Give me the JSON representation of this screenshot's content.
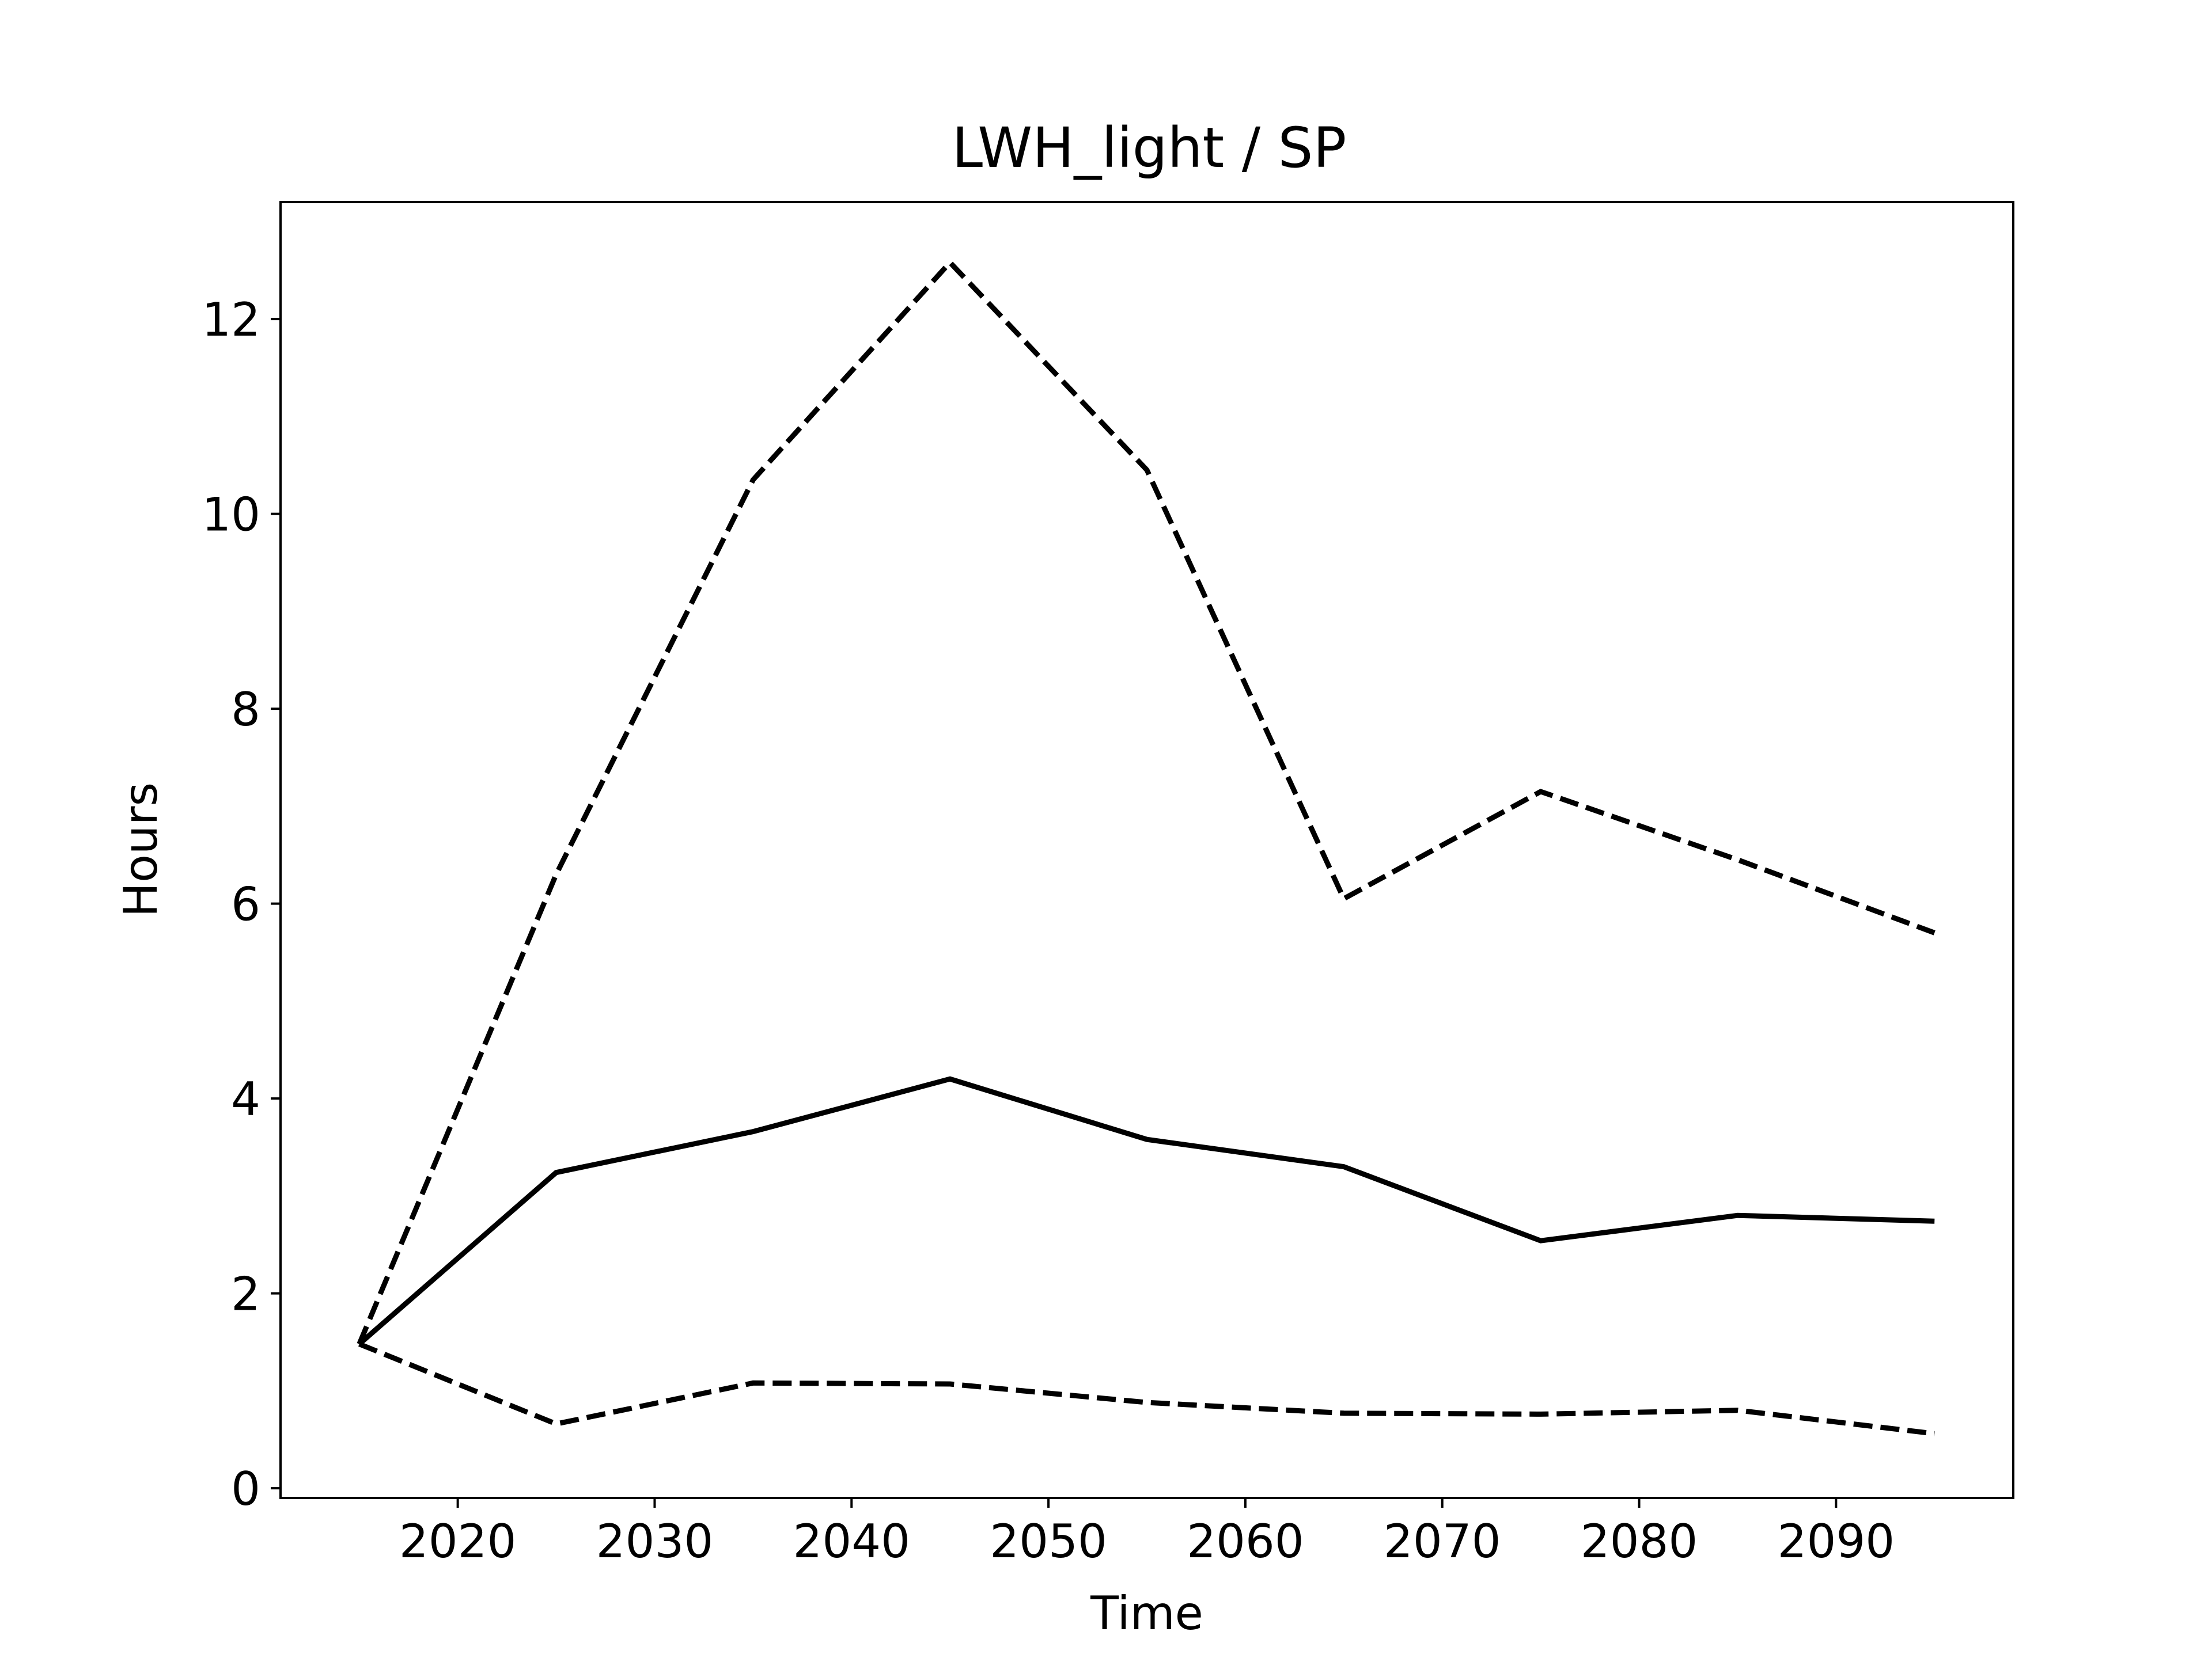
{
  "chart_data": {
    "type": "line",
    "title": "LWH_light / SP",
    "xlabel": "Time",
    "ylabel": "Hours",
    "xlim": [
      2011,
      2099
    ],
    "ylim": [
      -0.1,
      13.2
    ],
    "xticks": [
      2020,
      2030,
      2040,
      2050,
      2060,
      2070,
      2080,
      2090
    ],
    "yticks": [
      0,
      2,
      4,
      6,
      8,
      10,
      12
    ],
    "grid": false,
    "legend": null,
    "x": [
      2015,
      2025,
      2035,
      2045,
      2055,
      2065,
      2075,
      2085,
      2095
    ],
    "series": [
      {
        "style": "solid",
        "color": "#000000",
        "values": [
          1.48,
          3.24,
          3.66,
          4.2,
          3.58,
          3.3,
          2.54,
          2.8,
          2.74
        ]
      },
      {
        "style": "dashed",
        "color": "#000000",
        "values": [
          1.48,
          6.3,
          10.35,
          12.58,
          10.45,
          6.05,
          7.15,
          6.45,
          5.7
        ]
      },
      {
        "style": "dashed",
        "color": "#000000",
        "values": [
          1.48,
          0.66,
          1.08,
          1.07,
          0.88,
          0.77,
          0.76,
          0.8,
          0.56
        ]
      }
    ]
  }
}
